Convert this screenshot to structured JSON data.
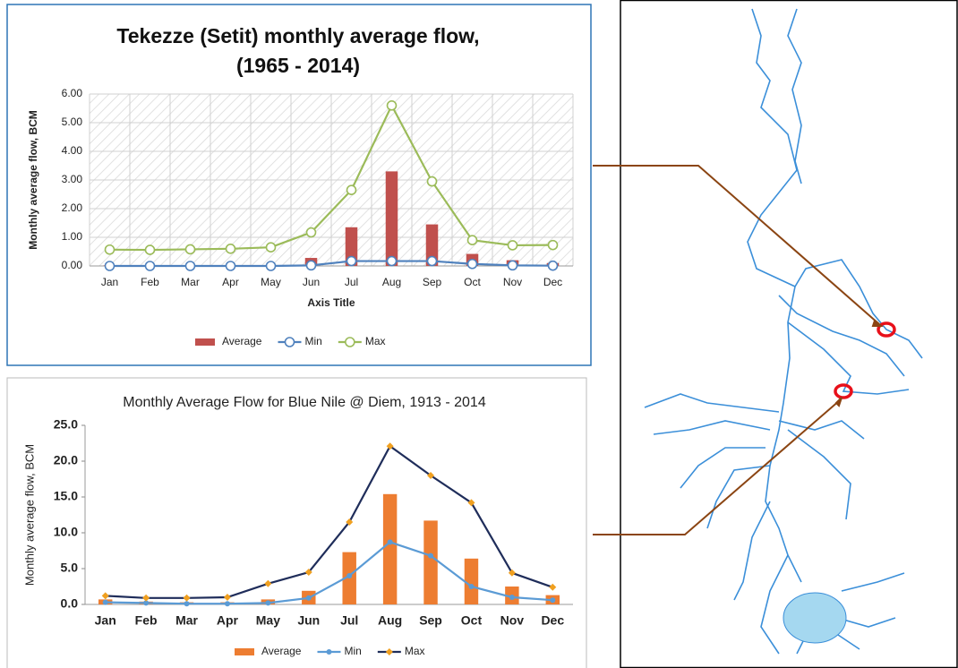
{
  "chart_data": [
    {
      "type": "bar_line",
      "title": "Tekezze (Setit) monthly average flow, (1965 - 2014)",
      "x_label": "Axis Title",
      "y_label": "Monthly average flow, BCM",
      "categories": [
        "Jan",
        "Feb",
        "Mar",
        "Apr",
        "May",
        "Jun",
        "Jul",
        "Aug",
        "Sep",
        "Oct",
        "Nov",
        "Dec"
      ],
      "ylim": [
        0,
        6
      ],
      "yticks": [
        {
          "value": 0,
          "label": "0.00"
        },
        {
          "value": 1,
          "label": "1.00"
        },
        {
          "value": 2,
          "label": "2.00"
        },
        {
          "value": 3,
          "label": "3.00"
        },
        {
          "value": 4,
          "label": "4.00"
        },
        {
          "value": 5,
          "label": "5.00"
        },
        {
          "value": 6,
          "label": "6.00"
        }
      ],
      "grid": true,
      "legend": "bottom",
      "series": [
        {
          "name": "Average",
          "kind": "bar",
          "color": "#c0504d",
          "values": [
            0.02,
            0.01,
            0.01,
            0.01,
            0.01,
            0.28,
            1.35,
            3.3,
            1.45,
            0.42,
            0.2,
            0.1
          ]
        },
        {
          "name": "Min",
          "kind": "line",
          "color": "#4f81bd",
          "marker": "circle",
          "marker_color": "#ffffff",
          "values": [
            0,
            0,
            0,
            0,
            0,
            0.02,
            0.17,
            0.17,
            0.17,
            0.07,
            0.02,
            0.01
          ]
        },
        {
          "name": "Max",
          "kind": "line",
          "color": "#9bbb59",
          "marker": "circle",
          "marker_color": "#ffffff",
          "values": [
            0.57,
            0.56,
            0.58,
            0.6,
            0.65,
            1.17,
            2.65,
            5.6,
            2.95,
            0.9,
            0.72,
            0.73
          ]
        }
      ]
    },
    {
      "type": "bar_line",
      "title": "Monthly Average Flow for Blue Nile @ Diem, 1913 - 2014",
      "y_label": "Monthly average flow, BCM",
      "categories": [
        "Jan",
        "Feb",
        "Mar",
        "Apr",
        "May",
        "Jun",
        "Jul",
        "Aug",
        "Sep",
        "Oct",
        "Nov",
        "Dec"
      ],
      "ylim": [
        0,
        25
      ],
      "yticks": [
        {
          "value": 0,
          "label": "0.0"
        },
        {
          "value": 5,
          "label": "5.0"
        },
        {
          "value": 10,
          "label": "10.0"
        },
        {
          "value": 15,
          "label": "15.0"
        },
        {
          "value": 20,
          "label": "20.0"
        },
        {
          "value": 25,
          "label": "25.0"
        }
      ],
      "grid": false,
      "legend": "bottom",
      "series": [
        {
          "name": "Average",
          "kind": "bar",
          "color": "#ed7d31",
          "values": [
            0.7,
            0.4,
            0.3,
            0.3,
            0.7,
            1.9,
            7.3,
            15.4,
            11.7,
            6.4,
            2.5,
            1.3
          ]
        },
        {
          "name": "Min",
          "kind": "line",
          "color": "#5b9bd5",
          "marker": "dot",
          "marker_color": "#5b9bd5",
          "values": [
            0.3,
            0.2,
            0.1,
            0.1,
            0.2,
            0.9,
            4.0,
            8.7,
            6.8,
            2.5,
            1.0,
            0.6
          ]
        },
        {
          "name": "Max",
          "kind": "line",
          "color": "#1f2d5a",
          "marker": "diamond",
          "marker_color": "#f0a020",
          "values": [
            1.2,
            0.9,
            0.9,
            1.0,
            2.9,
            4.5,
            11.5,
            22.1,
            18.0,
            14.2,
            4.4,
            2.4
          ]
        }
      ]
    }
  ]
}
